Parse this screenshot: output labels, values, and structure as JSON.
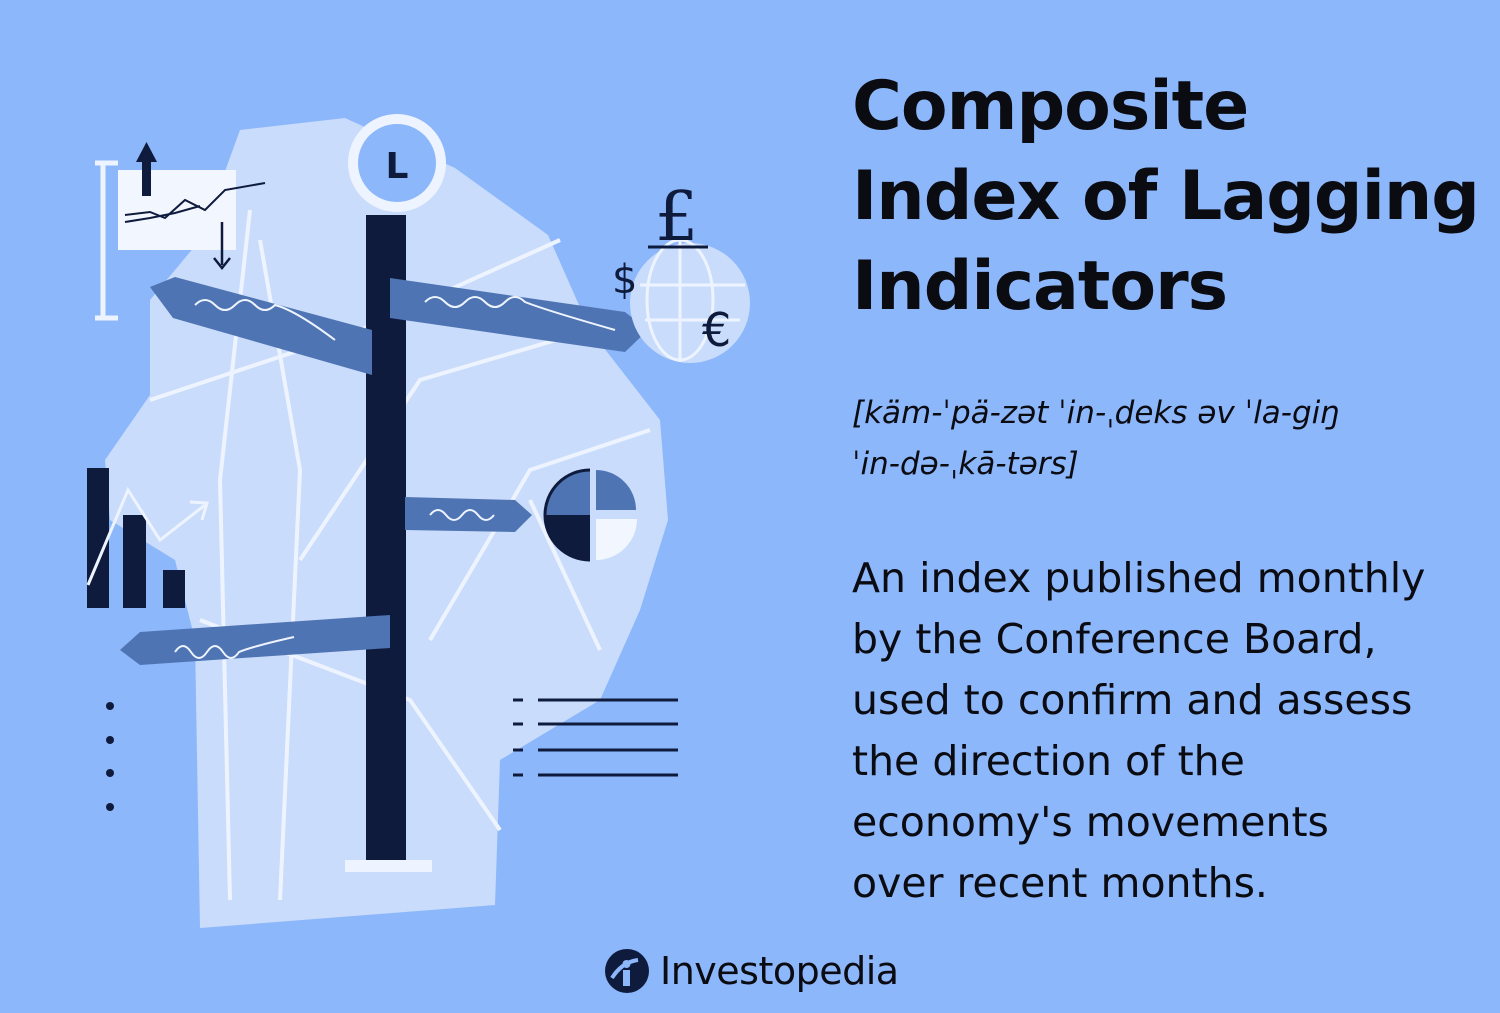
{
  "title": {
    "lines": [
      "Composite",
      "Index of Lagging",
      "Indicators"
    ]
  },
  "pronunciation": {
    "lines": [
      "[käm-ˈpä-zət ˈin-ˌdeks əv ˈla-giŋ",
      "ˈin-də-ˌkā-tərs]"
    ]
  },
  "definition": {
    "lines": [
      "An index published monthly",
      "by the Conference Board,",
      "used to confirm and assess",
      "the direction of the",
      "economy's movements",
      "over recent months."
    ]
  },
  "brand": {
    "name": "Investopedia",
    "logo_icon": "investopedia-logo-icon"
  },
  "illustration": {
    "clock_label": "L",
    "currency_symbols": [
      "£",
      "$",
      "€"
    ],
    "icons": [
      "clock-icon",
      "signpost-icon",
      "globe-icon",
      "pie-chart-icon",
      "bar-chart-icon",
      "line-chart-icon",
      "list-icon"
    ]
  },
  "colors": {
    "background": "#8db7fb",
    "map": "#c9dcfb",
    "navy": "#0f1b3d",
    "sign": "#4f74b3",
    "text": "#0b0b12"
  }
}
